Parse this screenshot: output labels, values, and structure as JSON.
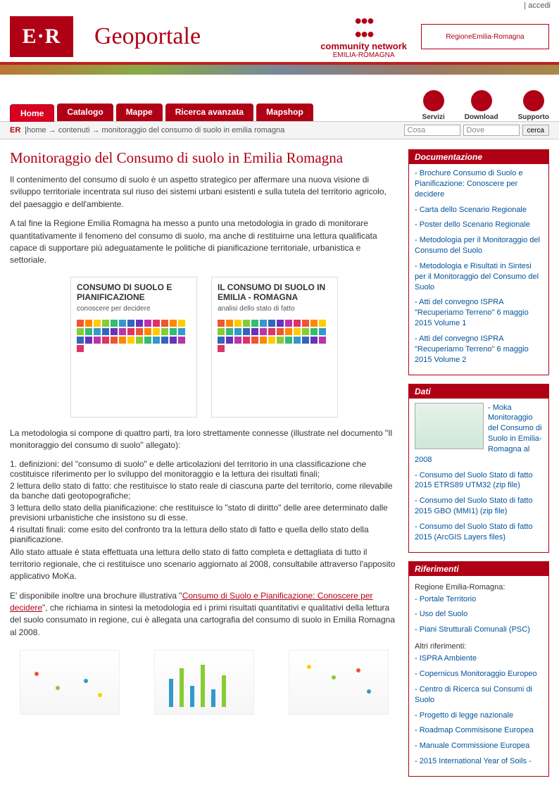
{
  "topbar": {
    "login": "accedi"
  },
  "header": {
    "logo_text": "E·R",
    "title": "Geoportale",
    "community_label": "community network",
    "community_sub": "EMILIA-ROMAGNA",
    "region_label": "RegioneEmilia-Romagna"
  },
  "nav": {
    "tabs": [
      {
        "label": "Home",
        "active": true
      },
      {
        "label": "Catalogo",
        "active": false
      },
      {
        "label": "Mappe",
        "active": false
      },
      {
        "label": "Ricerca avanzata",
        "active": false
      },
      {
        "label": "Mapshop",
        "active": false
      }
    ],
    "circles": [
      {
        "label": "Servizi"
      },
      {
        "label": "Download"
      },
      {
        "label": "Supporto"
      }
    ]
  },
  "breadcrumb": {
    "prefix": "ER",
    "items": [
      "home",
      "contenuti",
      "monitoraggio del consumo di suolo in emilia romagna"
    ]
  },
  "search": {
    "placeholder_what": "Cosa",
    "placeholder_where": "Dove",
    "button": "cerca"
  },
  "article": {
    "title": "Monitoraggio del Consumo di suolo in Emilia Romagna",
    "p1": "Il contenimento del consumo di suolo è un aspetto strategico per affermare una nuova visione di sviluppo territoriale incentrata sul riuso dei sistemi urbani esistenti e sulla tutela del territorio agricolo, del paesaggio e dell'ambiente.",
    "p2": "A tal fine la Regione Emilia Romagna ha messo a punto una metodologia in grado di monitorare quantitativamente il fenomeno del consumo di suolo, ma anche di restituirne una lettura qualificata capace di supportare più adeguatamente le politiche di pianificazione territoriale, urbanistica e settoriale.",
    "cover1_title": "CONSUMO DI SUOLO E PIANIFICAZIONE",
    "cover1_sub": "conoscere per decidere",
    "cover2_title": "IL CONSUMO DI SUOLO IN EMILIA - ROMAGNA",
    "cover2_sub": "analisi dello stato di fatto",
    "p3": "La metodologia si compone di quattro parti, tra loro strettamente connesse (illustrate nel documento \"Il monitoraggio del consumo di suolo\" allegato):",
    "list": [
      "1. definizioni: del \"consumo di suolo\" e delle articolazioni del territorio in una  classificazione che costituisce riferimento per lo sviluppo del monitoraggio e la lettura dei  risultati finali;",
      "2 lettura dello stato di fatto: che restituisce lo stato reale di ciascuna parte del territorio, come rilevabile da banche dati geotopografiche;",
      "3 lettura dello stato della pianificazione: che restituisce lo \"stato di diritto\" delle aree determinato dalle previsioni urbanistiche che insistono su di esse.",
      "4 risultati finali: come esito del confronto tra la lettura dello stato di fatto e quella dello stato della pianificazione."
    ],
    "p4": "Allo stato attuale è stata effettuata una lettura dello stato di fatto completa e dettagliata di tutto il territorio regionale, che ci restituisce uno scenario aggiornato al 2008, consultabile attraverso l'apposito applicativo MoKa.",
    "p5a": "E' disponibile inoltre una brochure illustrativa \"",
    "p5link": "Consumo di Suolo e Pianificazione: Conoscere per decidere",
    "p5b": "\", che richiama in sintesi la metodologia ed i primi risultati quantitativi e qualitativi della lettura del suolo consumato in regione, cui è allegata una cartografia del consumo di suolo in Emilia Romagna al 2008."
  },
  "panels": {
    "doc": {
      "head": "Documentazione",
      "items": [
        "Brochure Consumo di Suolo e Pianificazione: Conoscere per decidere",
        "Carta dello Scenario Regionale",
        "Poster dello Scenario Regionale",
        "Metodologia per il Monitoraggio del Consumo del Suolo",
        "Metodologia e Risultati in Sintesi per il Monitoraggio del Consumo del Suolo",
        "Atti del convegno ISPRA \"Recuperiamo Terreno\" 6 maggio 2015 Volume 1",
        "Atti del convegno ISPRA \"Recuperiamo Terreno\" 6 maggio 2015 Volume 2"
      ]
    },
    "dati": {
      "head": "Dati",
      "featured": "Moka Monitoraggio del Consumo di Suolo in Emilia-Romagna al 2008",
      "items": [
        "Consumo del Suolo Stato di fatto 2015 ETRS89 UTM32 (zip file)",
        "Consumo del Suolo Stato di fatto 2015 GBO (MMI1) (zip file)",
        "Consumo del Suolo Stato di fatto 2015 (ArcGIS Layers files)"
      ]
    },
    "rif": {
      "head": "Riferimenti",
      "head1": "Regione Emilia-Romagna:",
      "group1": [
        "Portale Territorio",
        "Uso del Suolo",
        "Piani Strutturali Comunali (PSC)"
      ],
      "head2": "Altri riferimenti:",
      "group2": [
        "ISPRA Ambiente",
        "Copernicus Monitoraggio Europeo",
        "Centro di Ricerca sui Consumi di Suolo",
        "Progetto di legge nazionale",
        "Roadmap Commisisone Europea",
        "Manuale Commissione Europea",
        "2015 International Year of Soils -"
      ]
    }
  },
  "mosaic_colors": [
    "#e53",
    "#f80",
    "#fc0",
    "#8c3",
    "#3b7",
    "#39c",
    "#36b",
    "#63b",
    "#b3a",
    "#d36",
    "#e53",
    "#f80",
    "#fc0",
    "#8c3",
    "#3b7",
    "#39c",
    "#36b",
    "#63b",
    "#b3a",
    "#d36",
    "#e53",
    "#f80",
    "#fc0",
    "#8c3",
    "#3b7",
    "#39c",
    "#36b",
    "#63b",
    "#b3a",
    "#d36",
    "#e53",
    "#f80",
    "#fc0",
    "#8c3",
    "#3b7",
    "#39c",
    "#36b",
    "#63b",
    "#b3a",
    "#d36"
  ]
}
